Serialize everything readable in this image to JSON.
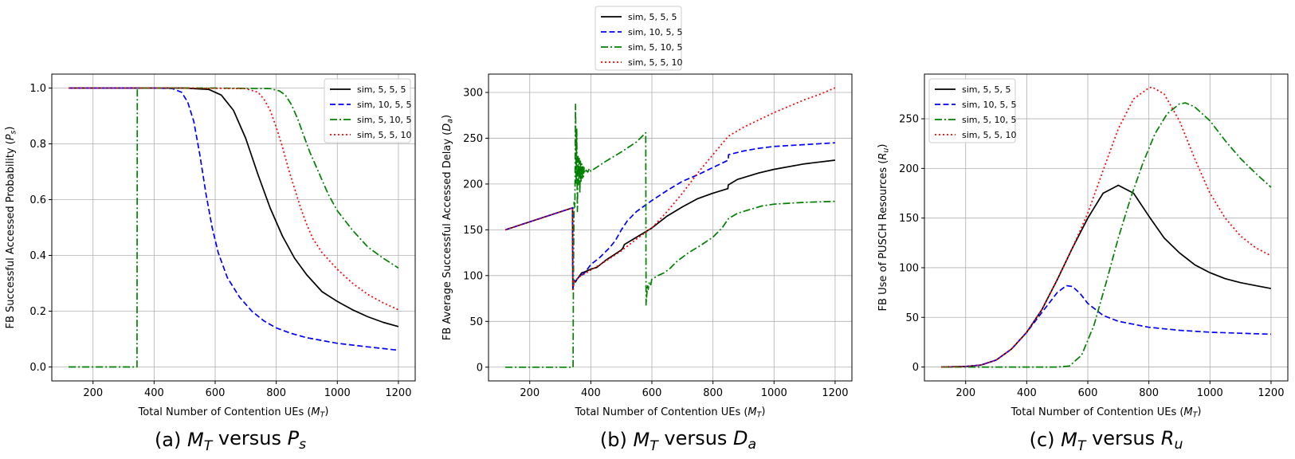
{
  "chart_data": [
    {
      "type": "line",
      "caption": "(a) M_T versus P_s",
      "xlabel": "Total Number of Contention UEs (M_T)",
      "ylabel": "FB Successful Accessed Probability (P_s)",
      "xlim": [
        65,
        1255
      ],
      "ylim": [
        -0.05,
        1.05
      ],
      "xticks": [
        200,
        400,
        600,
        800,
        1000,
        1200
      ],
      "yticks": [
        0.0,
        0.2,
        0.4,
        0.6,
        0.8,
        1.0
      ],
      "ytick_labels": [
        "0.0",
        "0.2",
        "0.4",
        "0.6",
        "0.8",
        "1.0"
      ],
      "grid": true,
      "legend_position": "top-right",
      "series": [
        {
          "name": "sim, 5, 5, 5",
          "color": "#000000",
          "style": "solid",
          "x": [
            120,
            300,
            500,
            580,
            620,
            660,
            700,
            740,
            780,
            820,
            860,
            900,
            950,
            1000,
            1050,
            1100,
            1150,
            1200
          ],
          "y": [
            1.0,
            1.0,
            1.0,
            0.995,
            0.975,
            0.92,
            0.82,
            0.69,
            0.57,
            0.47,
            0.39,
            0.33,
            0.27,
            0.235,
            0.205,
            0.18,
            0.16,
            0.145
          ]
        },
        {
          "name": "sim, 10, 5, 5",
          "color": "#0000ff",
          "style": "dashed",
          "x": [
            120,
            400,
            460,
            490,
            510,
            530,
            550,
            570,
            590,
            610,
            640,
            680,
            720,
            760,
            800,
            850,
            900,
            950,
            1000,
            1100,
            1200
          ],
          "y": [
            1.0,
            1.0,
            0.998,
            0.985,
            0.95,
            0.88,
            0.76,
            0.62,
            0.5,
            0.41,
            0.32,
            0.25,
            0.2,
            0.165,
            0.14,
            0.12,
            0.105,
            0.095,
            0.085,
            0.072,
            0.06
          ]
        },
        {
          "name": "sim, 5, 10, 5",
          "color": "#008000",
          "style": "dashdot",
          "x": [
            120,
            344,
            344,
            345,
            600,
            780,
            810,
            830,
            850,
            870,
            890,
            910,
            930,
            950,
            970,
            1000,
            1050,
            1100,
            1150,
            1200
          ],
          "y": [
            0.0,
            0.0,
            0.0,
            1.0,
            1.0,
            0.998,
            0.99,
            0.975,
            0.94,
            0.89,
            0.83,
            0.77,
            0.72,
            0.67,
            0.62,
            0.56,
            0.49,
            0.43,
            0.39,
            0.355
          ]
        },
        {
          "name": "sim, 5, 5, 10",
          "color": "#ff0000",
          "style": "dotted",
          "x": [
            120,
            500,
            700,
            740,
            760,
            780,
            800,
            820,
            840,
            860,
            880,
            900,
            920,
            950,
            1000,
            1050,
            1100,
            1150,
            1200
          ],
          "y": [
            1.0,
            1.0,
            0.998,
            0.985,
            0.96,
            0.92,
            0.86,
            0.79,
            0.71,
            0.64,
            0.57,
            0.51,
            0.46,
            0.41,
            0.35,
            0.3,
            0.26,
            0.23,
            0.205
          ]
        }
      ]
    },
    {
      "type": "line",
      "caption": "(b) M_T versus D_a",
      "xlabel": "Total Number of Contention UEs (M_T)",
      "ylabel": "FB Average Successful Accessed Delay (D_a)",
      "xlim": [
        65,
        1255
      ],
      "ylim": [
        -15,
        320
      ],
      "xticks": [
        200,
        400,
        600,
        800,
        1000,
        1200
      ],
      "yticks": [
        0,
        50,
        100,
        150,
        200,
        250,
        300
      ],
      "ytick_labels": [
        "0",
        "50",
        "100",
        "150",
        "200",
        "250",
        "300"
      ],
      "grid": true,
      "legend_position": "above",
      "series": [
        {
          "name": "sim, 5, 5, 5",
          "color": "#000000",
          "style": "solid",
          "x": [
            120,
            340,
            341,
            345,
            350,
            355,
            360,
            370,
            380,
            400,
            420,
            450,
            500,
            505,
            510,
            550,
            600,
            650,
            700,
            750,
            800,
            849,
            850,
            880,
            950,
            1000,
            1100,
            1200
          ],
          "y": [
            150,
            174,
            85,
            95,
            93,
            96,
            98,
            103,
            104,
            107,
            109,
            117,
            128,
            130,
            134,
            142,
            152,
            165,
            175,
            184,
            190,
            195,
            199,
            205,
            212,
            216,
            222,
            226
          ]
        },
        {
          "name": "sim, 10, 5, 5",
          "color": "#0000ff",
          "style": "dashed",
          "x": [
            120,
            340,
            341,
            345,
            360,
            380,
            400,
            430,
            460,
            480,
            500,
            520,
            550,
            600,
            650,
            700,
            750,
            800,
            850,
            851,
            900,
            950,
            1000,
            1050,
            1100,
            1150,
            1200
          ],
          "y": [
            150,
            174,
            86,
            92,
            98,
            103,
            112,
            120,
            130,
            138,
            150,
            160,
            170,
            182,
            193,
            203,
            210,
            218,
            226,
            232,
            236,
            239,
            241,
            242,
            243,
            244,
            245
          ]
        },
        {
          "name": "sim, 5, 10, 5",
          "color": "#008000",
          "style": "dashdot",
          "x": [
            120,
            342,
            343,
            345,
            348,
            350,
            352,
            354,
            356,
            358,
            360,
            362,
            364,
            366,
            368,
            370,
            372,
            374,
            376,
            378,
            380,
            385,
            390,
            395,
            400,
            450,
            500,
            550,
            580,
            581,
            583,
            586,
            588,
            592,
            596,
            600,
            620,
            640,
            660,
            680,
            720,
            760,
            800,
            830,
            850,
            880,
            920,
            960,
            1000,
            1100,
            1200
          ],
          "y": [
            0,
            0,
            88,
            180,
            175,
            287,
            200,
            260,
            170,
            230,
            200,
            228,
            190,
            225,
            203,
            222,
            205,
            220,
            208,
            218,
            212,
            215,
            213,
            217,
            214,
            225,
            235,
            246,
            256,
            68,
            78,
            90,
            85,
            93,
            90,
            96,
            100,
            103,
            108,
            115,
            125,
            133,
            142,
            152,
            162,
            168,
            172,
            176,
            178,
            180,
            181
          ]
        },
        {
          "name": "sim, 5, 5, 10",
          "color": "#ff0000",
          "style": "dotted",
          "x": [
            120,
            340,
            341,
            345,
            360,
            400,
            450,
            500,
            550,
            600,
            650,
            700,
            750,
            800,
            850,
            900,
            950,
            1000,
            1050,
            1100,
            1150,
            1200
          ],
          "y": [
            150,
            174,
            85,
            93,
            98,
            106,
            116,
            127,
            140,
            152,
            170,
            190,
            212,
            232,
            252,
            262,
            270,
            278,
            285,
            292,
            298,
            305
          ]
        }
      ]
    },
    {
      "type": "line",
      "caption": "(c) M_T versus R_u",
      "xlabel": "Total Number of Contention UEs (M_T)",
      "ylabel": "FB Use of PUSCH Resources (R_u)",
      "xlim": [
        65,
        1255
      ],
      "ylim": [
        -14,
        295
      ],
      "xticks": [
        200,
        400,
        600,
        800,
        1000,
        1200
      ],
      "yticks": [
        0,
        50,
        100,
        150,
        200,
        250
      ],
      "ytick_labels": [
        "0",
        "50",
        "100",
        "150",
        "200",
        "250"
      ],
      "grid": true,
      "legend_position": "top-left",
      "series": [
        {
          "name": "sim, 5, 5, 5",
          "color": "#000000",
          "style": "solid",
          "x": [
            120,
            200,
            250,
            300,
            350,
            400,
            450,
            500,
            550,
            600,
            650,
            700,
            750,
            800,
            850,
            900,
            950,
            1000,
            1050,
            1100,
            1150,
            1200
          ],
          "y": [
            0,
            0.5,
            2,
            7,
            18,
            35,
            58,
            88,
            120,
            150,
            175,
            183,
            175,
            152,
            130,
            115,
            103,
            95,
            89,
            85,
            82,
            79
          ]
        },
        {
          "name": "sim, 10, 5, 5",
          "color": "#0000ff",
          "style": "dashed",
          "x": [
            120,
            200,
            250,
            300,
            350,
            400,
            450,
            500,
            530,
            550,
            575,
            600,
            650,
            700,
            800,
            900,
            1000,
            1100,
            1200
          ],
          "y": [
            0,
            0.5,
            2,
            7,
            18,
            35,
            55,
            75,
            82,
            81,
            74,
            64,
            52,
            46,
            40,
            37,
            35,
            34,
            33
          ]
        },
        {
          "name": "sim, 5, 10, 5",
          "color": "#008000",
          "style": "dashdot",
          "x": [
            120,
            300,
            450,
            500,
            540,
            580,
            620,
            660,
            700,
            740,
            780,
            820,
            860,
            900,
            920,
            950,
            1000,
            1050,
            1100,
            1150,
            1200
          ],
          "y": [
            0,
            0,
            0,
            0,
            1,
            12,
            42,
            85,
            130,
            170,
            205,
            235,
            255,
            265,
            266,
            262,
            248,
            228,
            210,
            195,
            181
          ]
        },
        {
          "name": "sim, 5, 5, 10",
          "color": "#ff0000",
          "style": "dotted",
          "x": [
            120,
            200,
            250,
            300,
            350,
            400,
            450,
            500,
            550,
            600,
            650,
            700,
            750,
            800,
            810,
            850,
            900,
            950,
            1000,
            1050,
            1100,
            1150,
            1200
          ],
          "y": [
            0,
            0.5,
            2,
            7,
            18,
            35,
            58,
            88,
            120,
            155,
            198,
            240,
            270,
            281,
            282,
            275,
            248,
            210,
            175,
            150,
            132,
            120,
            112
          ]
        }
      ]
    }
  ]
}
